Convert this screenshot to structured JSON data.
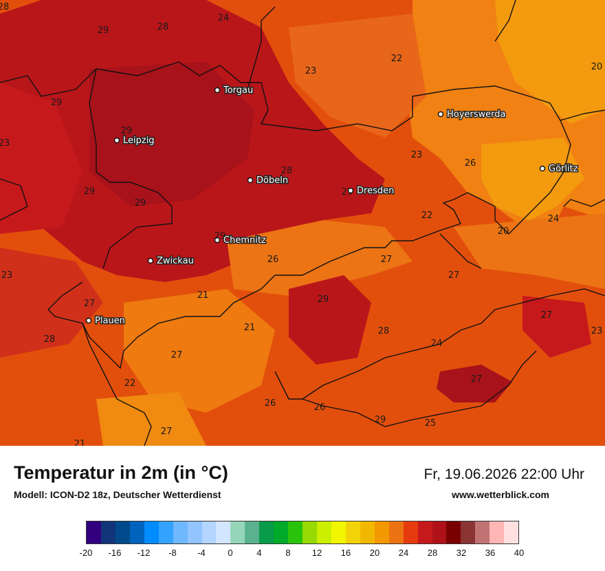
{
  "footer": {
    "title": "Temperatur in 2m (in °C)",
    "model": "Modell: ICON-D2 18z, Deutscher Wetterdienst",
    "datetime": "Fr, 19.06.2026 22:00 Uhr",
    "website": "www.wetterblick.com"
  },
  "cities": [
    {
      "name": "Torgau"
    },
    {
      "name": "Leipzig"
    },
    {
      "name": "Döbeln"
    },
    {
      "name": "Dresden"
    },
    {
      "name": "Hoyerswerda"
    },
    {
      "name": "Görlitz"
    },
    {
      "name": "Chemnitz"
    },
    {
      "name": "Zwickau"
    },
    {
      "name": "Plauen"
    }
  ],
  "temperature_labels": [
    "28",
    "29",
    "28",
    "24",
    "22",
    "20",
    "23",
    "29",
    "29",
    "23",
    "29",
    "29",
    "28",
    "29",
    "23",
    "26",
    "22",
    "20",
    "24",
    "29",
    "26",
    "23",
    "27",
    "21",
    "27",
    "29",
    "27",
    "27",
    "21",
    "28",
    "24",
    "23",
    "28",
    "27",
    "22",
    "26",
    "26",
    "29",
    "27",
    "25",
    "27",
    "21"
  ],
  "color_scale": {
    "tick_labels": [
      "-20",
      "-16",
      "-12",
      "-8",
      "-4",
      "0",
      "4",
      "8",
      "12",
      "16",
      "20",
      "24",
      "28",
      "32",
      "36",
      "40"
    ],
    "colors": [
      "#32007f",
      "#12357a",
      "#004a8c",
      "#0063bd",
      "#008bff",
      "#34a2ff",
      "#6fb7ff",
      "#92c4ff",
      "#b3d5ff",
      "#d3e6ff",
      "#95d6b8",
      "#5ab18e",
      "#089c4a",
      "#00aa2a",
      "#2ac30b",
      "#96d903",
      "#ccee00",
      "#f2f600",
      "#f2d30a",
      "#f2b800",
      "#f29800",
      "#ed7312",
      "#e63b0f",
      "#c6191c",
      "#ae1118",
      "#7a0000",
      "#8a3434",
      "#c17373",
      "#ffb6b4",
      "#ffe0e1"
    ]
  }
}
